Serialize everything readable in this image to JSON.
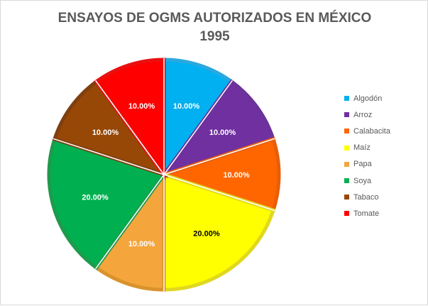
{
  "chart_data": {
    "type": "pie",
    "title": [
      "ENSAYOS DE OGMS AUTORIZADOS EN MÉXICO",
      "1995"
    ],
    "categories": [
      "Algodón",
      "Arroz",
      "Calabacita",
      "Maíz",
      "Papa",
      "Soya",
      "Tabaco",
      "Tomate"
    ],
    "values": [
      10,
      10,
      10,
      20,
      10,
      20,
      10,
      10
    ],
    "data_labels": [
      "10.00%",
      "10.00%",
      "10.00%",
      "20.00%",
      "10.00%",
      "20.00%",
      "10.00%",
      "10.00%"
    ],
    "colors": [
      "#00b0f0",
      "#7030a0",
      "#ff6600",
      "#ffff00",
      "#f4a53c",
      "#00b050",
      "#974706",
      "#ff0000"
    ],
    "border_colors": [
      "#2aa8e0",
      "#6a329a",
      "#e85e0a",
      "#e0d81e",
      "#d9922c",
      "#1f9a4c",
      "#7f3f10",
      "#e81010"
    ],
    "label_colors": [
      "#ffffff",
      "#ffffff",
      "#ffffff",
      "#000000",
      "#ffffff",
      "#ffffff",
      "#ffffff",
      "#ffffff"
    ],
    "legend_position": "right",
    "start_angle_deg": 0,
    "direction": "clockwise"
  }
}
